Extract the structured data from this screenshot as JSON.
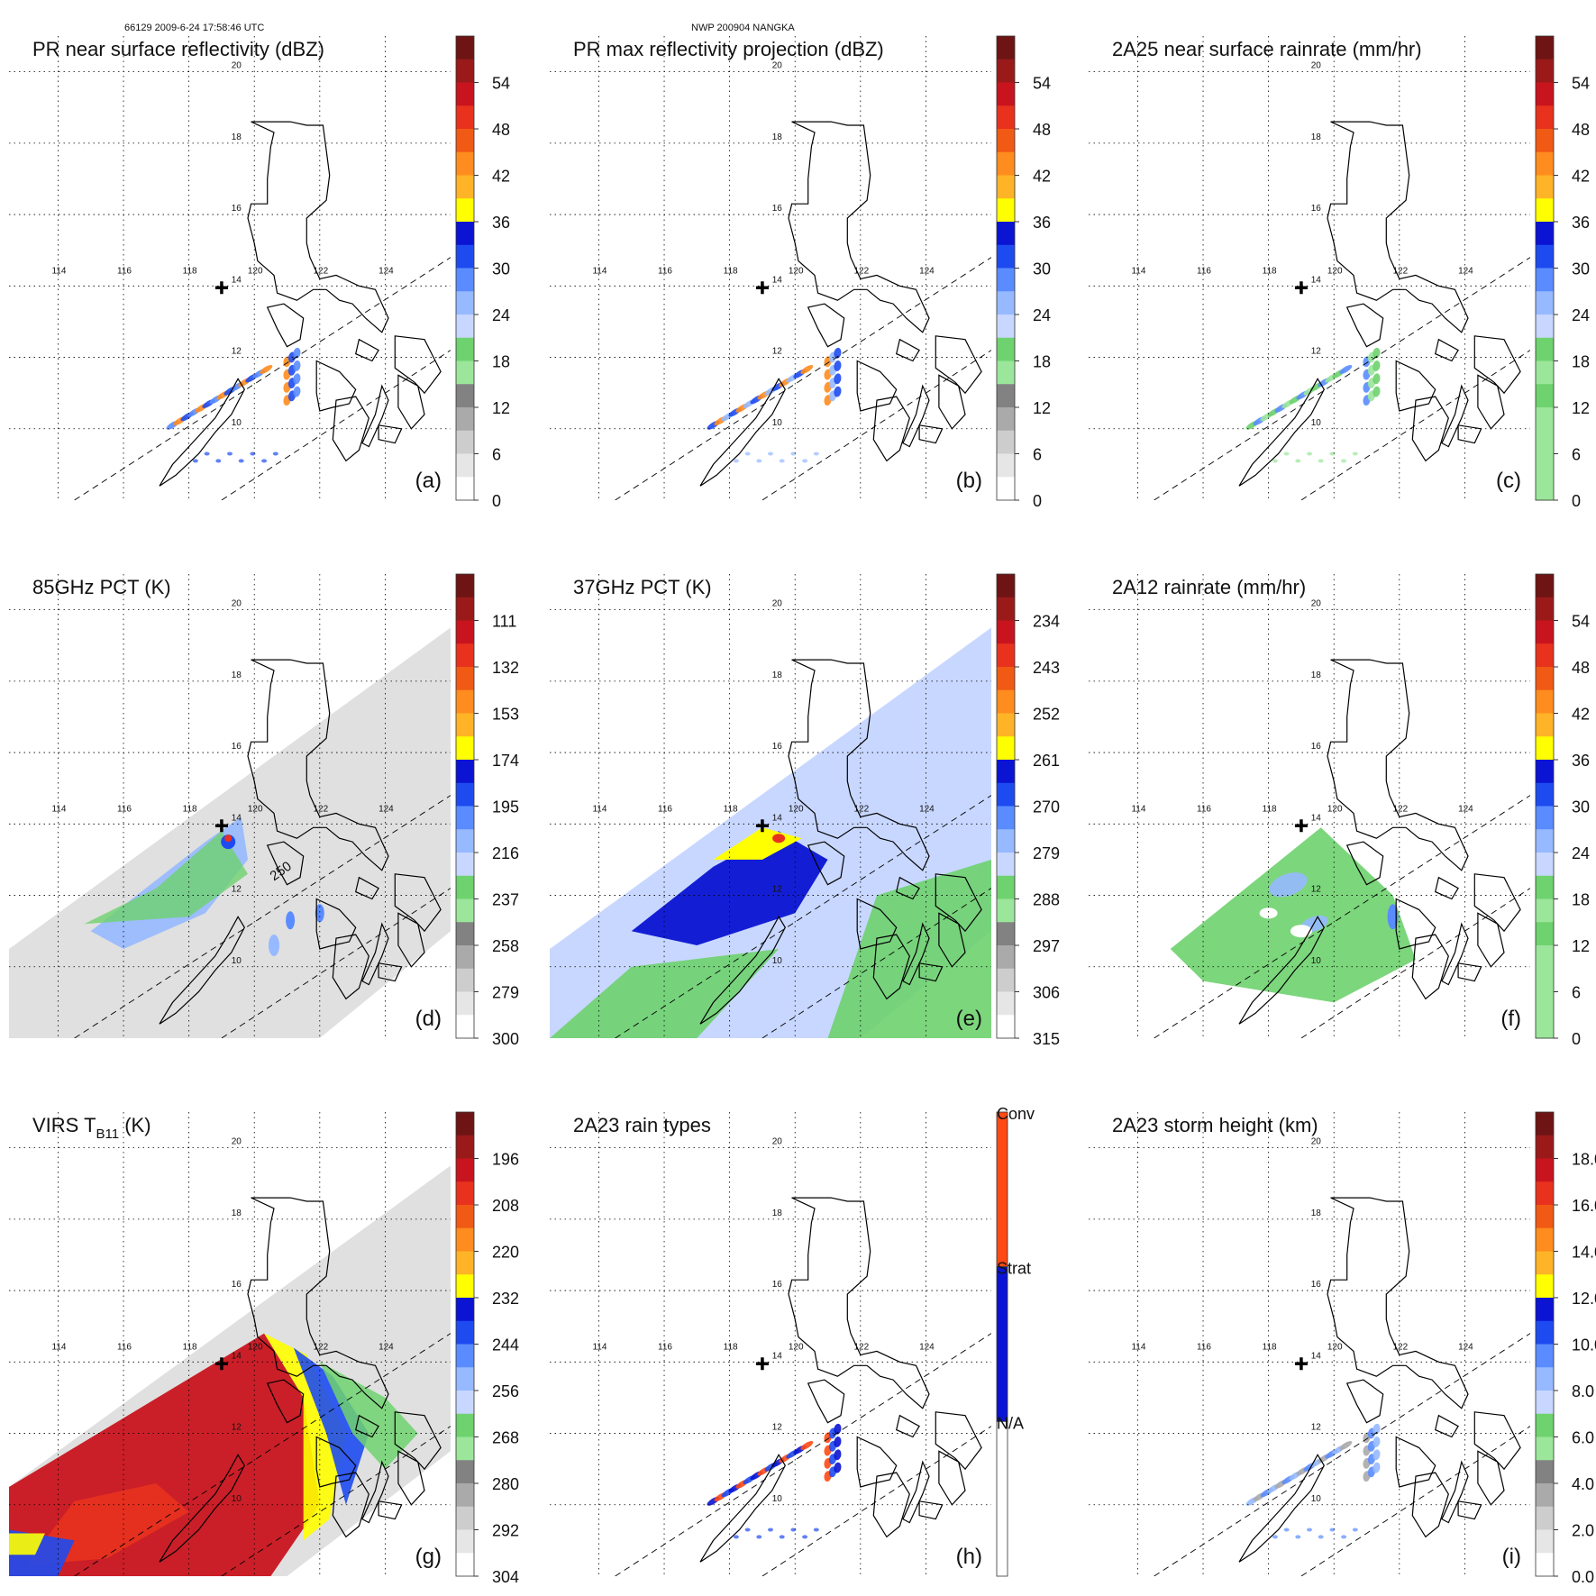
{
  "header": {
    "orbit_time": "66129 2009-6-24 17:58:46 UTC",
    "storm": "NWP 200904 NANGKA"
  },
  "colors": {
    "land_outline": "#000000",
    "grid": "#000000",
    "swath_edge": "#000000",
    "plus_marker": "#000000"
  },
  "map": {
    "lon_labels": [
      "114",
      "116",
      "118",
      "120",
      "122",
      "124"
    ],
    "lat_labels": [
      "20",
      "18",
      "16",
      "14",
      "12",
      "10"
    ],
    "lon_range": [
      112.5,
      126.0
    ],
    "lat_range": [
      8.0,
      21.0
    ]
  },
  "chart_data": [
    {
      "type": "heatmap",
      "panel": "a",
      "title": "PR near surface reflectivity (dBZ)",
      "label": "(a)",
      "colorbar": {
        "ticks": [
          "54",
          "48",
          "42",
          "36",
          "30",
          "24",
          "18",
          "12",
          "6",
          "0"
        ],
        "range": [
          0,
          60
        ],
        "colors": [
          "#6e1414",
          "#9a1a1a",
          "#c8141e",
          "#e8321e",
          "#f05a14",
          "#ff8c1e",
          "#ffb428",
          "#ffff00",
          "#0a14d2",
          "#1e4bf0",
          "#5a8cff",
          "#96b9ff",
          "#c8d7ff",
          "#6ed26e",
          "#9be69b",
          "#828282",
          "#aaaaaa",
          "#cdcdcd",
          "#e6e6e6",
          "#ffffff"
        ]
      },
      "data_extent": "narrow PR swath, rain cells near 9-12N, 117-122E"
    },
    {
      "type": "heatmap",
      "panel": "b",
      "title": "PR max reflectivity projection (dBZ)",
      "label": "(b)",
      "colorbar": {
        "ticks": [
          "54",
          "48",
          "42",
          "36",
          "30",
          "24",
          "18",
          "12",
          "6",
          "0"
        ],
        "range": [
          0,
          60
        ],
        "colors": [
          "#6e1414",
          "#9a1a1a",
          "#c8141e",
          "#e8321e",
          "#f05a14",
          "#ff8c1e",
          "#ffb428",
          "#ffff00",
          "#0a14d2",
          "#1e4bf0",
          "#5a8cff",
          "#96b9ff",
          "#c8d7ff",
          "#6ed26e",
          "#9be69b",
          "#828282",
          "#aaaaaa",
          "#cdcdcd",
          "#e6e6e6",
          "#ffffff"
        ]
      },
      "data_extent": "narrow PR swath, convective band near 10-12N, 118-122E"
    },
    {
      "type": "heatmap",
      "panel": "c",
      "title": "2A25 near surface rainrate (mm/hr)",
      "label": "(c)",
      "colorbar": {
        "ticks": [
          "54",
          "48",
          "42",
          "36",
          "30",
          "24",
          "18",
          "12",
          "6",
          "0"
        ],
        "range": [
          0,
          60
        ],
        "colors": [
          "#6e1414",
          "#9a1a1a",
          "#c8141e",
          "#e8321e",
          "#f05a14",
          "#ff8c1e",
          "#ffb428",
          "#ffff00",
          "#0a14d2",
          "#1e4bf0",
          "#5a8cff",
          "#96b9ff",
          "#c8d7ff",
          "#6ed26e",
          "#9be69b",
          "#6ed26e",
          "#9be69b",
          "#9be69b",
          "#9be69b",
          "#9be69b"
        ]
      },
      "data_extent": "narrow PR swath, light rain near 10-12N"
    },
    {
      "type": "heatmap",
      "panel": "d",
      "title": "85GHz PCT (K)",
      "label": "(d)",
      "colorbar": {
        "ticks": [
          "111",
          "132",
          "153",
          "174",
          "195",
          "216",
          "237",
          "258",
          "279",
          "300"
        ],
        "range": [
          90,
          300
        ],
        "colors": [
          "#6e1414",
          "#9a1a1a",
          "#c8141e",
          "#e8321e",
          "#f05a14",
          "#ff8c1e",
          "#ffb428",
          "#ffff00",
          "#0a14d2",
          "#1e4bf0",
          "#5a8cff",
          "#96b9ff",
          "#c8d7ff",
          "#6ed26e",
          "#9be69b",
          "#828282",
          "#aaaaaa",
          "#cdcdcd",
          "#e6e6e6",
          "#ffffff"
        ]
      },
      "contour_label": "250",
      "data_extent": "TMI wide swath; depressed PCT west of Luzon near 13-14N, 119-120E"
    },
    {
      "type": "heatmap",
      "panel": "e",
      "title": "37GHz PCT (K)",
      "label": "(e)",
      "colorbar": {
        "ticks": [
          "234",
          "243",
          "252",
          "261",
          "270",
          "279",
          "288",
          "297",
          "306",
          "315"
        ],
        "range": [
          225,
          315
        ],
        "colors": [
          "#6e1414",
          "#9a1a1a",
          "#c8141e",
          "#e8321e",
          "#f05a14",
          "#ff8c1e",
          "#ffb428",
          "#ffff00",
          "#0a14d2",
          "#1e4bf0",
          "#5a8cff",
          "#96b9ff",
          "#c8d7ff",
          "#6ed26e",
          "#9be69b",
          "#828282",
          "#aaaaaa",
          "#cdcdcd",
          "#e6e6e6",
          "#ffffff"
        ]
      },
      "data_extent": "TMI wide swath; warm (low PCT) rain region west of Luzon, 12-14N"
    },
    {
      "type": "heatmap",
      "panel": "f",
      "title": "2A12 rainrate (mm/hr)",
      "label": "(f)",
      "colorbar": {
        "ticks": [
          "54",
          "48",
          "42",
          "36",
          "30",
          "24",
          "18",
          "12",
          "6",
          "0"
        ],
        "range": [
          0,
          60
        ],
        "colors": [
          "#6e1414",
          "#9a1a1a",
          "#c8141e",
          "#e8321e",
          "#f05a14",
          "#ff8c1e",
          "#ffb428",
          "#ffff00",
          "#0a14d2",
          "#1e4bf0",
          "#5a8cff",
          "#96b9ff",
          "#c8d7ff",
          "#6ed26e",
          "#9be69b",
          "#6ed26e",
          "#9be69b",
          "#9be69b",
          "#9be69b",
          "#9be69b"
        ]
      },
      "data_extent": "TMI swath; widespread light rain west of Luzon, 9-14N"
    },
    {
      "type": "heatmap",
      "panel": "g",
      "title": "VIRS T",
      "title_sub": "B11",
      "title_unit": " (K)",
      "label": "(g)",
      "colorbar": {
        "ticks": [
          "196",
          "208",
          "220",
          "232",
          "244",
          "256",
          "268",
          "280",
          "292",
          "304"
        ],
        "range": [
          184,
          304
        ],
        "colors": [
          "#6e1414",
          "#9a1a1a",
          "#c8141e",
          "#e8321e",
          "#f05a14",
          "#ff8c1e",
          "#ffb428",
          "#ffff00",
          "#0a14d2",
          "#1e4bf0",
          "#5a8cff",
          "#96b9ff",
          "#c8d7ff",
          "#6ed26e",
          "#9be69b",
          "#828282",
          "#aaaaaa",
          "#cdcdcd",
          "#e6e6e6",
          "#ffffff"
        ]
      },
      "data_extent": "VIRS swath; extensive cold cloud top (red/orange) over 9-14N, 113-121E"
    },
    {
      "type": "heatmap",
      "panel": "h",
      "title": "2A23 rain types",
      "label": "(h)",
      "colorbar": {
        "categories": [
          "Conv",
          "Strat",
          "N/A"
        ],
        "category_colors": [
          "#ff4a14",
          "#0a14d2",
          "#ffffff"
        ]
      },
      "data_extent": "narrow PR swath; mostly stratiform with convective cores near 11-12N"
    },
    {
      "type": "heatmap",
      "panel": "i",
      "title": "2A23 storm height (km)",
      "label": "(i)",
      "colorbar": {
        "ticks": [
          "18.0",
          "16.0",
          "14.0",
          "12.0",
          "10.0",
          "8.0",
          "6.0",
          "4.0",
          "2.0",
          "0.0"
        ],
        "range": [
          0,
          20
        ],
        "colors": [
          "#6e1414",
          "#9a1a1a",
          "#c8141e",
          "#e8321e",
          "#f05a14",
          "#ff8c1e",
          "#ffb428",
          "#ffff00",
          "#0a14d2",
          "#1e4bf0",
          "#5a8cff",
          "#96b9ff",
          "#c8d7ff",
          "#6ed26e",
          "#9be69b",
          "#828282",
          "#aaaaaa",
          "#cdcdcd",
          "#e6e6e6",
          "#ffffff"
        ]
      },
      "data_extent": "narrow PR swath; storm heights mostly 4-10 km near 10-12N"
    }
  ]
}
